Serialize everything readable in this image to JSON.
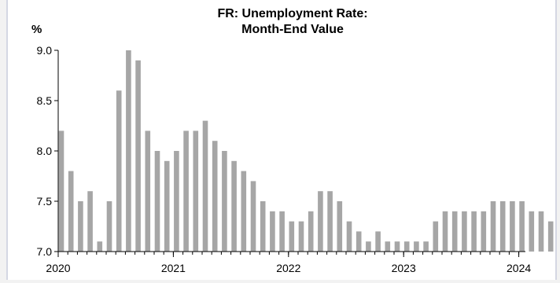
{
  "chart_data": {
    "type": "bar",
    "title_line1": "FR: Unemployment Rate:",
    "title_line2": "Month-End Value",
    "ylabel": "%",
    "xlabel": "",
    "ylim": [
      7.0,
      9.0
    ],
    "yticks": [
      "9.0",
      "8.5",
      "8.0",
      "7.5",
      "7.0"
    ],
    "xticks": [
      {
        "label": "2020",
        "index": 0
      },
      {
        "label": "2021",
        "index": 12
      },
      {
        "label": "2022",
        "index": 24
      },
      {
        "label": "2023",
        "index": 36
      },
      {
        "label": "2024",
        "index": 48
      }
    ],
    "categories": [
      "2020-01",
      "2020-02",
      "2020-03",
      "2020-04",
      "2020-05",
      "2020-06",
      "2020-07",
      "2020-08",
      "2020-09",
      "2020-10",
      "2020-11",
      "2020-12",
      "2021-01",
      "2021-02",
      "2021-03",
      "2021-04",
      "2021-05",
      "2021-06",
      "2021-07",
      "2021-08",
      "2021-09",
      "2021-10",
      "2021-11",
      "2021-12",
      "2022-01",
      "2022-02",
      "2022-03",
      "2022-04",
      "2022-05",
      "2022-06",
      "2022-07",
      "2022-08",
      "2022-09",
      "2022-10",
      "2022-11",
      "2022-12",
      "2023-01",
      "2023-02",
      "2023-03",
      "2023-04",
      "2023-05",
      "2023-06",
      "2023-07",
      "2023-08",
      "2023-09",
      "2023-10",
      "2023-11",
      "2023-12",
      "2024-01",
      "2024-02",
      "2024-03",
      "2024-04"
    ],
    "values": [
      8.2,
      7.8,
      7.5,
      7.6,
      7.1,
      7.5,
      8.6,
      9.0,
      8.9,
      8.2,
      8.0,
      7.9,
      8.0,
      8.2,
      8.2,
      8.3,
      8.1,
      8.0,
      7.9,
      7.8,
      7.7,
      7.5,
      7.4,
      7.4,
      7.3,
      7.3,
      7.4,
      7.6,
      7.6,
      7.5,
      7.3,
      7.2,
      7.1,
      7.2,
      7.1,
      7.1,
      7.1,
      7.1,
      7.1,
      7.3,
      7.4,
      7.4,
      7.4,
      7.4,
      7.4,
      7.5,
      7.5,
      7.5,
      7.5,
      7.4,
      7.4,
      7.3
    ],
    "bar_color": "#a6a6a6",
    "grid": false
  }
}
